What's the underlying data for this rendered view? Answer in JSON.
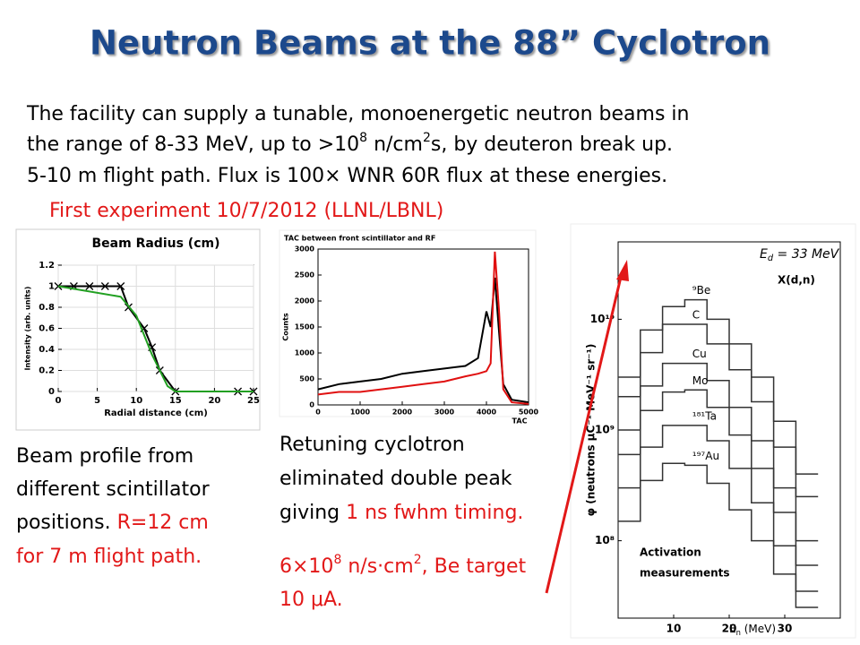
{
  "title": "Neutron Beams at the 88” Cyclotron",
  "body": {
    "line1": "The facility can supply a tunable, monoenergetic neutron beams in",
    "line2": [
      "the range of 8-33 MeV, up to >10",
      "8",
      " n/cm",
      "2",
      "s, by deuteron break up."
    ],
    "line3": "5-10 m flight path.  Flux is 100× WNR 60R flux at these energies."
  },
  "first_experiment": "First experiment 10/7/2012 (LLNL/LBNL)",
  "caption_left": [
    "Beam profile from",
    "different scintillator",
    "positions.  ",
    "R=12 cm",
    "for 7 m flight path."
  ],
  "caption_mid": [
    "Retuning cyclotron",
    "eliminated double peak",
    "giving ",
    "1 ns fwhm timing."
  ],
  "flux_note": {
    "line1": [
      "6×10",
      "8",
      " n/s·cm",
      "2",
      ", Be target"
    ],
    "line2": "10 μA."
  },
  "spectrum_notes": {
    "reaction": "X(d,n)",
    "activation": [
      "Activation",
      "measurements"
    ]
  },
  "chart_data": [
    {
      "type": "line",
      "title": "Beam Radius (cm)",
      "xlabel": "Radial distance (cm)",
      "ylabel": "Intensity (arb. units)",
      "xlim": [
        0,
        25
      ],
      "xticks": [
        0,
        5,
        10,
        15,
        20,
        25
      ],
      "ylim": [
        0,
        1.2
      ],
      "yticks": [
        0,
        0.2,
        0.4,
        0.6,
        0.8,
        1,
        1.2
      ],
      "grid": true,
      "series": [
        {
          "color": "#000000",
          "marker": "x",
          "x": [
            0,
            2,
            4,
            6,
            8,
            9,
            11,
            12,
            13,
            15,
            23,
            25
          ],
          "values": [
            1,
            1,
            1,
            1,
            1,
            0.8,
            0.6,
            0.42,
            0.2,
            0,
            0,
            0
          ]
        },
        {
          "color": "#22a022",
          "marker": "none",
          "x": [
            0,
            8,
            10,
            12,
            14,
            15,
            25
          ],
          "values": [
            1,
            0.9,
            0.72,
            0.35,
            0.05,
            0,
            0
          ]
        }
      ]
    },
    {
      "type": "line",
      "title": "TAC between front scintillator and RF",
      "xlabel": "TAC",
      "ylabel": "Counts",
      "xlim": [
        0,
        5000
      ],
      "xticks": [
        0,
        1000,
        2000,
        3000,
        4000,
        5000
      ],
      "ylim": [
        0,
        3000
      ],
      "yticks": [
        0,
        500,
        1000,
        1500,
        2000,
        2500,
        3000
      ],
      "grid": false,
      "series": [
        {
          "color": "#000000",
          "marker": "none",
          "x": [
            0,
            500,
            1000,
            1500,
            2000,
            2500,
            3000,
            3500,
            3800,
            4000,
            4100,
            4200,
            4300,
            4400,
            4600,
            5000
          ],
          "values": [
            300,
            400,
            450,
            500,
            600,
            650,
            700,
            750,
            900,
            1800,
            1500,
            2450,
            1400,
            400,
            100,
            50
          ]
        },
        {
          "color": "#e01010",
          "marker": "none",
          "x": [
            0,
            500,
            1000,
            1500,
            2000,
            2500,
            3000,
            3500,
            3800,
            4000,
            4100,
            4200,
            4300,
            4400,
            4600,
            5000
          ],
          "values": [
            200,
            250,
            250,
            300,
            350,
            400,
            450,
            550,
            600,
            650,
            800,
            2950,
            1800,
            300,
            50,
            20
          ]
        }
      ]
    },
    {
      "type": "step",
      "title": [
        "E",
        "d",
        " = 33 MeV"
      ],
      "xlabel": [
        "E",
        "n",
        " (MeV)"
      ],
      "ylabel": "φ (neutrons μC⁻¹ MeV⁻¹ sr⁻¹)",
      "xlim": [
        0,
        40
      ],
      "xticks": [
        10,
        20,
        30
      ],
      "ylim": [
        20000000,
        50000000000
      ],
      "log_y": true,
      "yticks": [
        {
          "value": 100000000,
          "label": "10⁸"
        },
        {
          "value": 1000000000,
          "label": "10⁹"
        },
        {
          "value": 10000000000,
          "label": "10¹⁰"
        }
      ],
      "x": [
        2,
        6,
        10,
        14,
        18,
        22,
        26,
        30,
        34
      ],
      "series": [
        {
          "name": "⁹Be",
          "color": "#333333",
          "values": [
            3000000000,
            8000000000,
            13000000000,
            15000000000,
            10000000000,
            6000000000,
            3000000000,
            1200000000,
            400000000
          ]
        },
        {
          "name": "C",
          "color": "#333333",
          "values": [
            2000000000,
            5000000000,
            9000000000,
            9000000000,
            6000000000,
            3500000000,
            1800000000,
            700000000,
            250000000
          ]
        },
        {
          "name": "Cu",
          "color": "#333333",
          "values": [
            1000000000,
            2500000000,
            4000000000,
            4000000000,
            2800000000,
            1600000000,
            800000000,
            300000000,
            100000000
          ]
        },
        {
          "name": "Mo",
          "color": "#333333",
          "values": [
            600000000,
            1500000000,
            2200000000,
            2300000000,
            1600000000,
            900000000,
            450000000,
            180000000,
            60000000
          ]
        },
        {
          "name": "¹⁸¹Ta",
          "color": "#333333",
          "values": [
            300000000,
            700000000,
            1100000000,
            1100000000,
            800000000,
            450000000,
            220000000,
            90000000,
            35000000
          ]
        },
        {
          "name": "¹⁹⁷Au",
          "color": "#333333",
          "values": [
            150000000,
            350000000,
            500000000,
            480000000,
            330000000,
            190000000,
            100000000,
            50000000,
            25000000
          ]
        }
      ]
    }
  ]
}
